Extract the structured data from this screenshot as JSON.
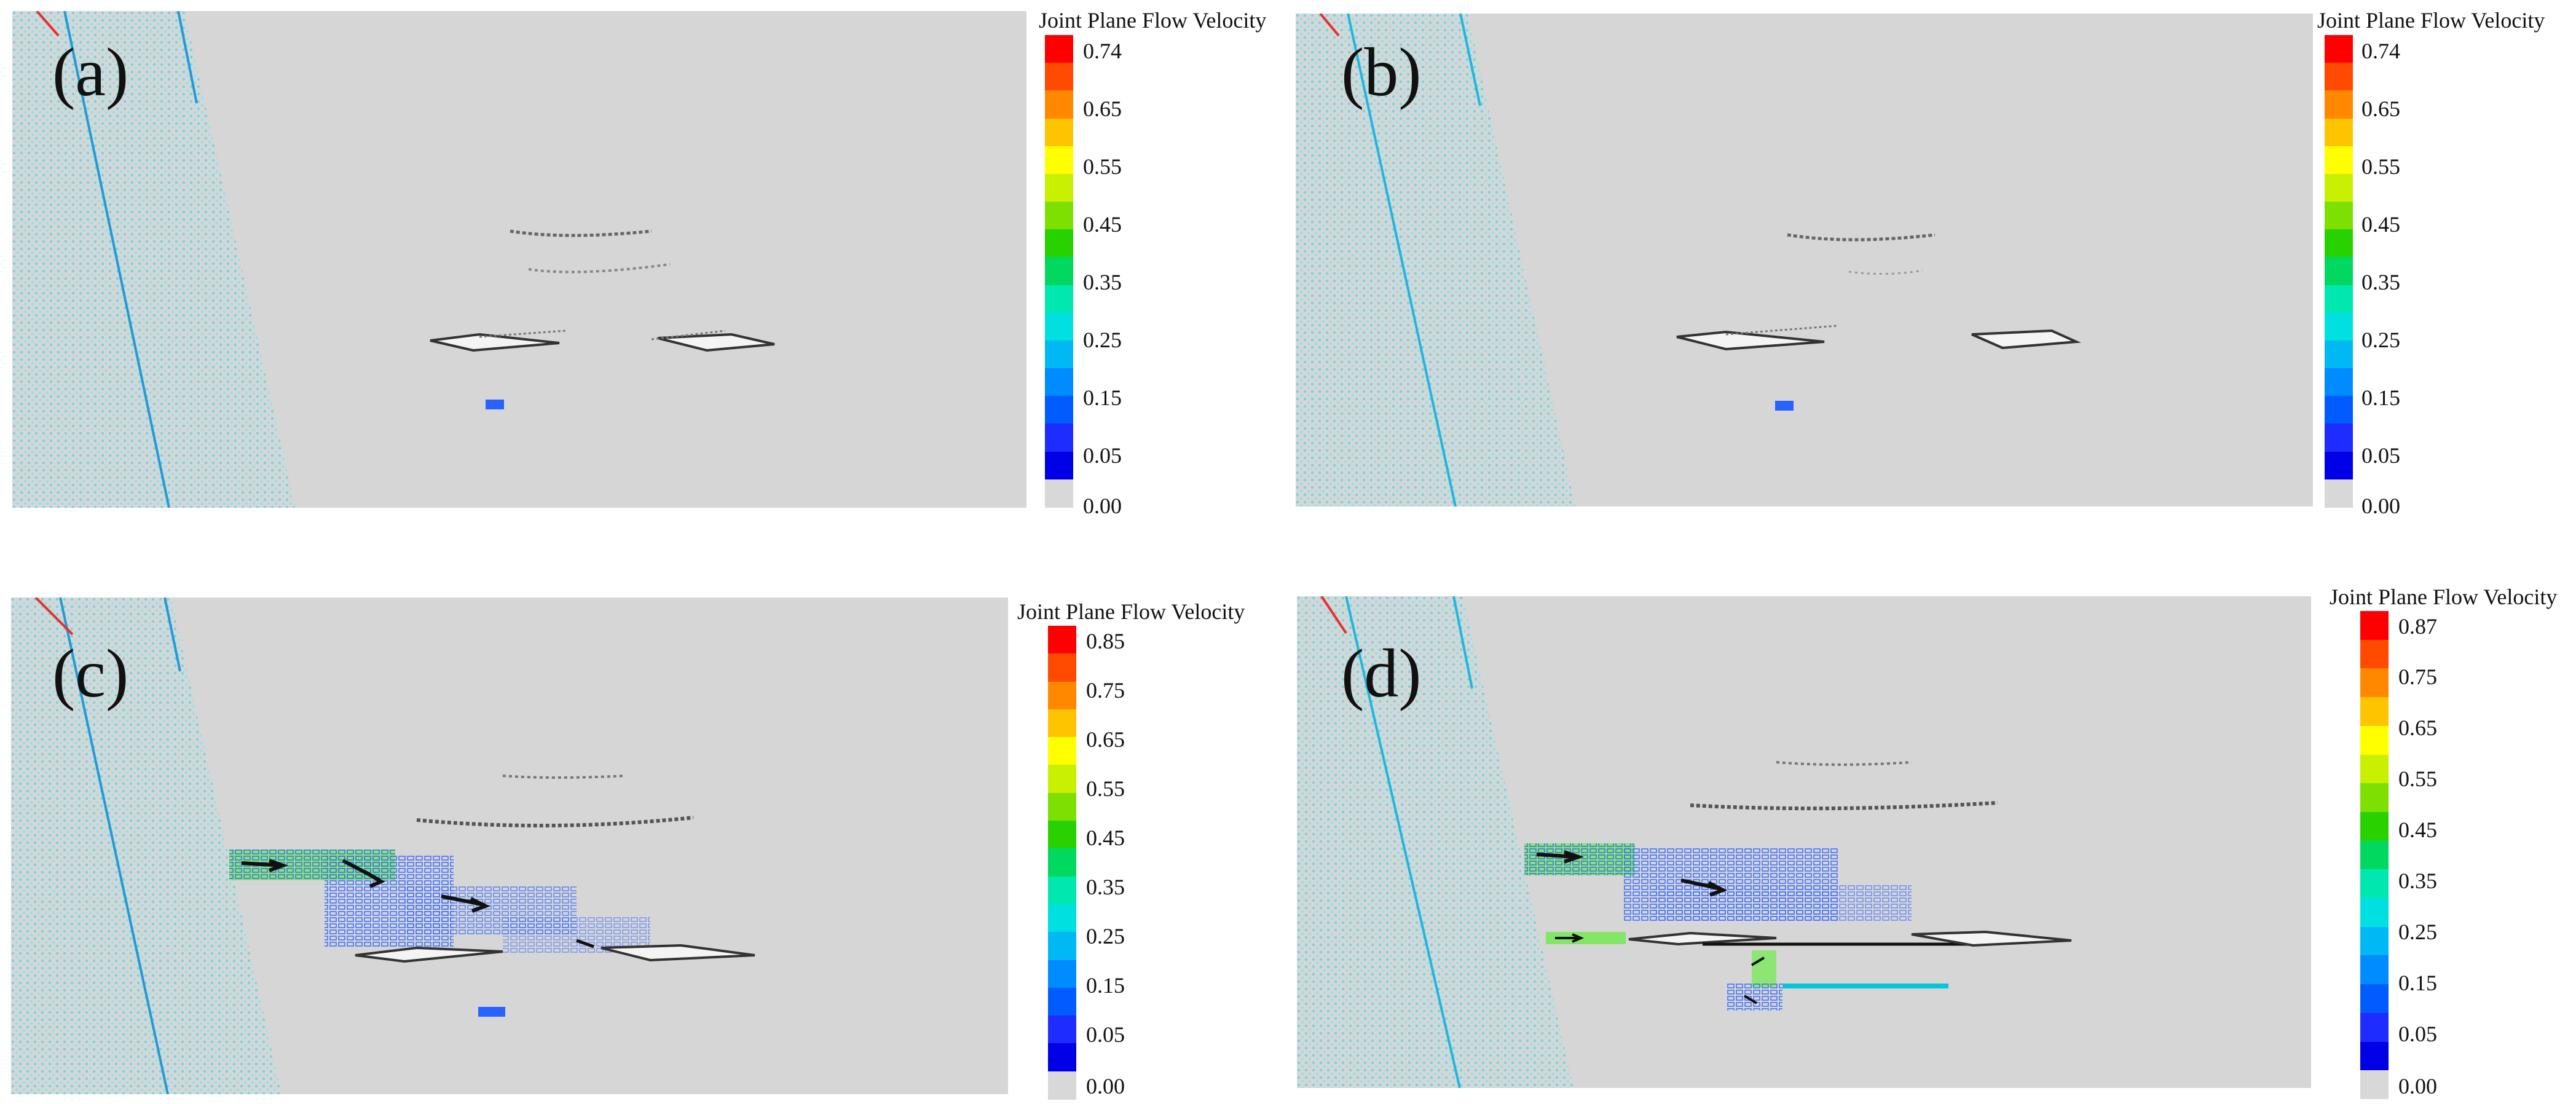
{
  "panels": [
    {
      "label": "(a)",
      "colorbar": {
        "title": "Joint Plane Flow Velocity",
        "ticks": [
          "0.74",
          "0.65",
          "0.55",
          "0.45",
          "0.35",
          "0.25",
          "0.15",
          "0.05",
          "0.00"
        ]
      }
    },
    {
      "label": "(b)",
      "colorbar": {
        "title": "Joint Plane Flow Velocity",
        "ticks": [
          "0.74",
          "0.65",
          "0.55",
          "0.45",
          "0.35",
          "0.25",
          "0.15",
          "0.05",
          "0.00"
        ]
      }
    },
    {
      "label": "(c)",
      "colorbar": {
        "title": "Joint Plane Flow Velocity",
        "ticks": [
          "0.85",
          "0.75",
          "0.65",
          "0.55",
          "0.45",
          "0.35",
          "0.25",
          "0.15",
          "0.05",
          "0.00"
        ]
      }
    },
    {
      "label": "(d)",
      "colorbar": {
        "title": "Joint Plane Flow Velocity",
        "ticks": [
          "0.87",
          "0.75",
          "0.65",
          "0.55",
          "0.45",
          "0.35",
          "0.25",
          "0.15",
          "0.05",
          "0.00"
        ]
      }
    }
  ],
  "colors": {
    "background": "#d6d6d6",
    "scale": [
      "#ff0000",
      "#ff4a00",
      "#ff8800",
      "#ffc400",
      "#ffff00",
      "#c8f000",
      "#7ee000",
      "#28d200",
      "#00d860",
      "#00e8b0",
      "#00e0e0",
      "#00b8f4",
      "#008cff",
      "#005cff",
      "#1e2cff",
      "#0000e6",
      "#d8d8d8"
    ],
    "lattice": "#6fd7e0"
  }
}
